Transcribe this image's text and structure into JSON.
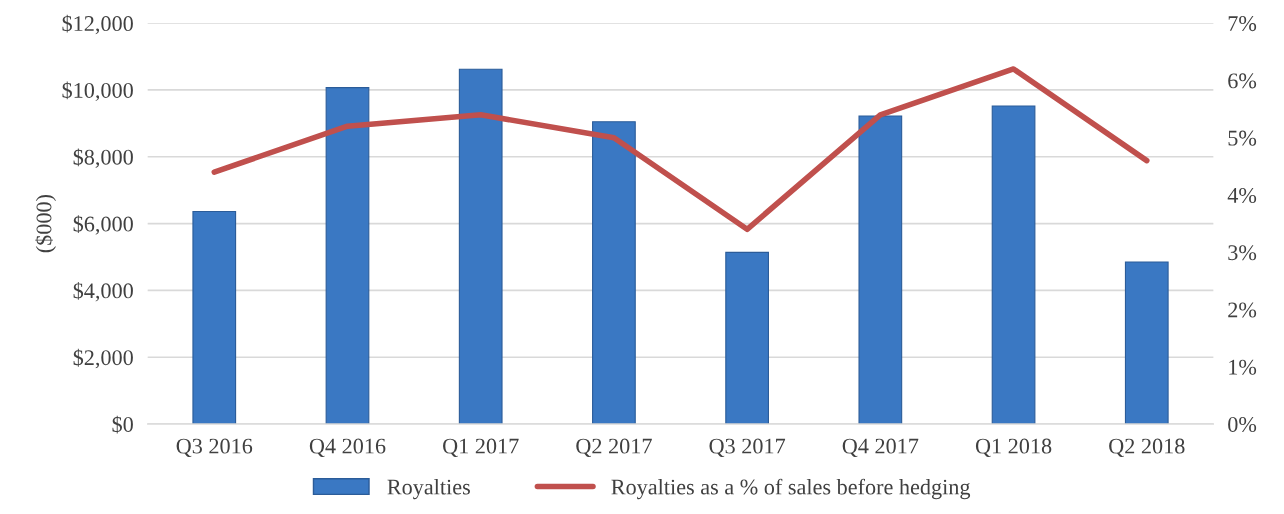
{
  "chart_data": {
    "type": "bar",
    "ylabel": "($000)",
    "categories": [
      "Q3 2016",
      "Q4 2016",
      "Q1 2017",
      "Q2 2017",
      "Q3 2017",
      "Q4 2017",
      "Q1 2018",
      "Q2 2018"
    ],
    "series": [
      {
        "name": "Royalties",
        "color": "#3a78c3",
        "values": [
          6360,
          10070,
          10620,
          9050,
          5140,
          9220,
          9520,
          4850
        ]
      },
      {
        "name": "Royalties as a % of sales before hedging",
        "type": "line",
        "axis": "y2",
        "color": "#c0504d",
        "values": [
          4.4,
          5.2,
          5.4,
          5.0,
          3.4,
          5.4,
          6.2,
          4.6
        ]
      }
    ],
    "ylim": [
      0,
      12000
    ],
    "yticks": [
      {
        "value": 0,
        "label": "$0"
      },
      {
        "value": 2000,
        "label": "$2,000"
      },
      {
        "value": 4000,
        "label": "$4,000"
      },
      {
        "value": 6000,
        "label": "$6,000"
      },
      {
        "value": 8000,
        "label": "$8,000"
      },
      {
        "value": 10000,
        "label": "$10,000"
      },
      {
        "value": 12000,
        "label": "$12,000"
      }
    ],
    "y2lim": [
      0,
      7
    ],
    "y2ticks": [
      {
        "value": 0,
        "label": "0%"
      },
      {
        "value": 1,
        "label": "1%"
      },
      {
        "value": 2,
        "label": "2%"
      },
      {
        "value": 3,
        "label": "3%"
      },
      {
        "value": 4,
        "label": "4%"
      },
      {
        "value": 5,
        "label": "5%"
      },
      {
        "value": 6,
        "label": "6%"
      },
      {
        "value": 7,
        "label": "7%"
      }
    ],
    "grid": "y",
    "legend": "bottom",
    "marker": "none"
  }
}
